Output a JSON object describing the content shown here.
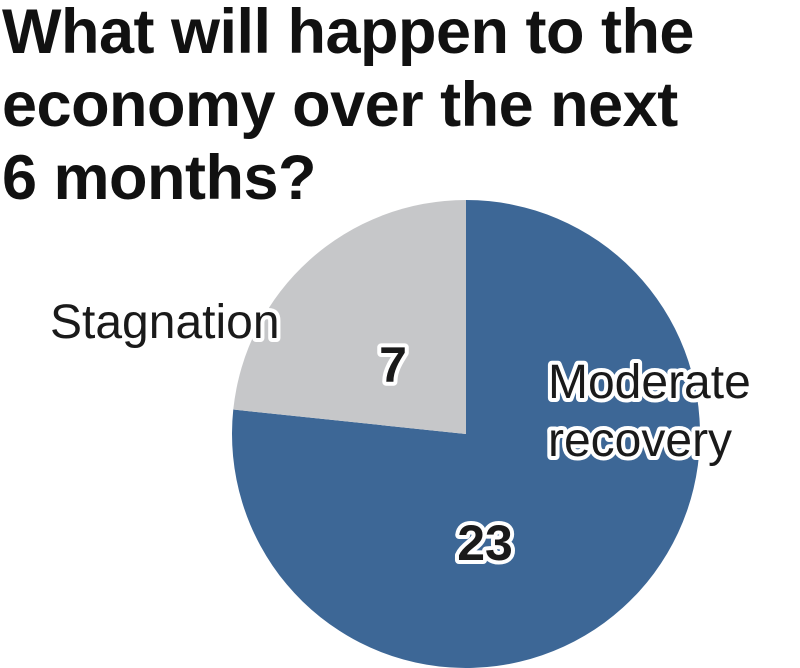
{
  "title_lines": [
    "What will happen to the",
    "economy over the next",
    "6 months?"
  ],
  "chart_data": {
    "type": "pie",
    "title": "What will happen to the economy over the next 6 months?",
    "slices": [
      {
        "name_lines": [
          "Moderate",
          "recovery"
        ],
        "value": 23,
        "value_label": "23",
        "color": "#3d6796"
      },
      {
        "name_lines": [
          "Stagnation"
        ],
        "value": 7,
        "value_label": "7",
        "color": "#c6c7c9"
      }
    ],
    "start": "12 o'clock",
    "direction": "clockwise",
    "legend": "none"
  }
}
